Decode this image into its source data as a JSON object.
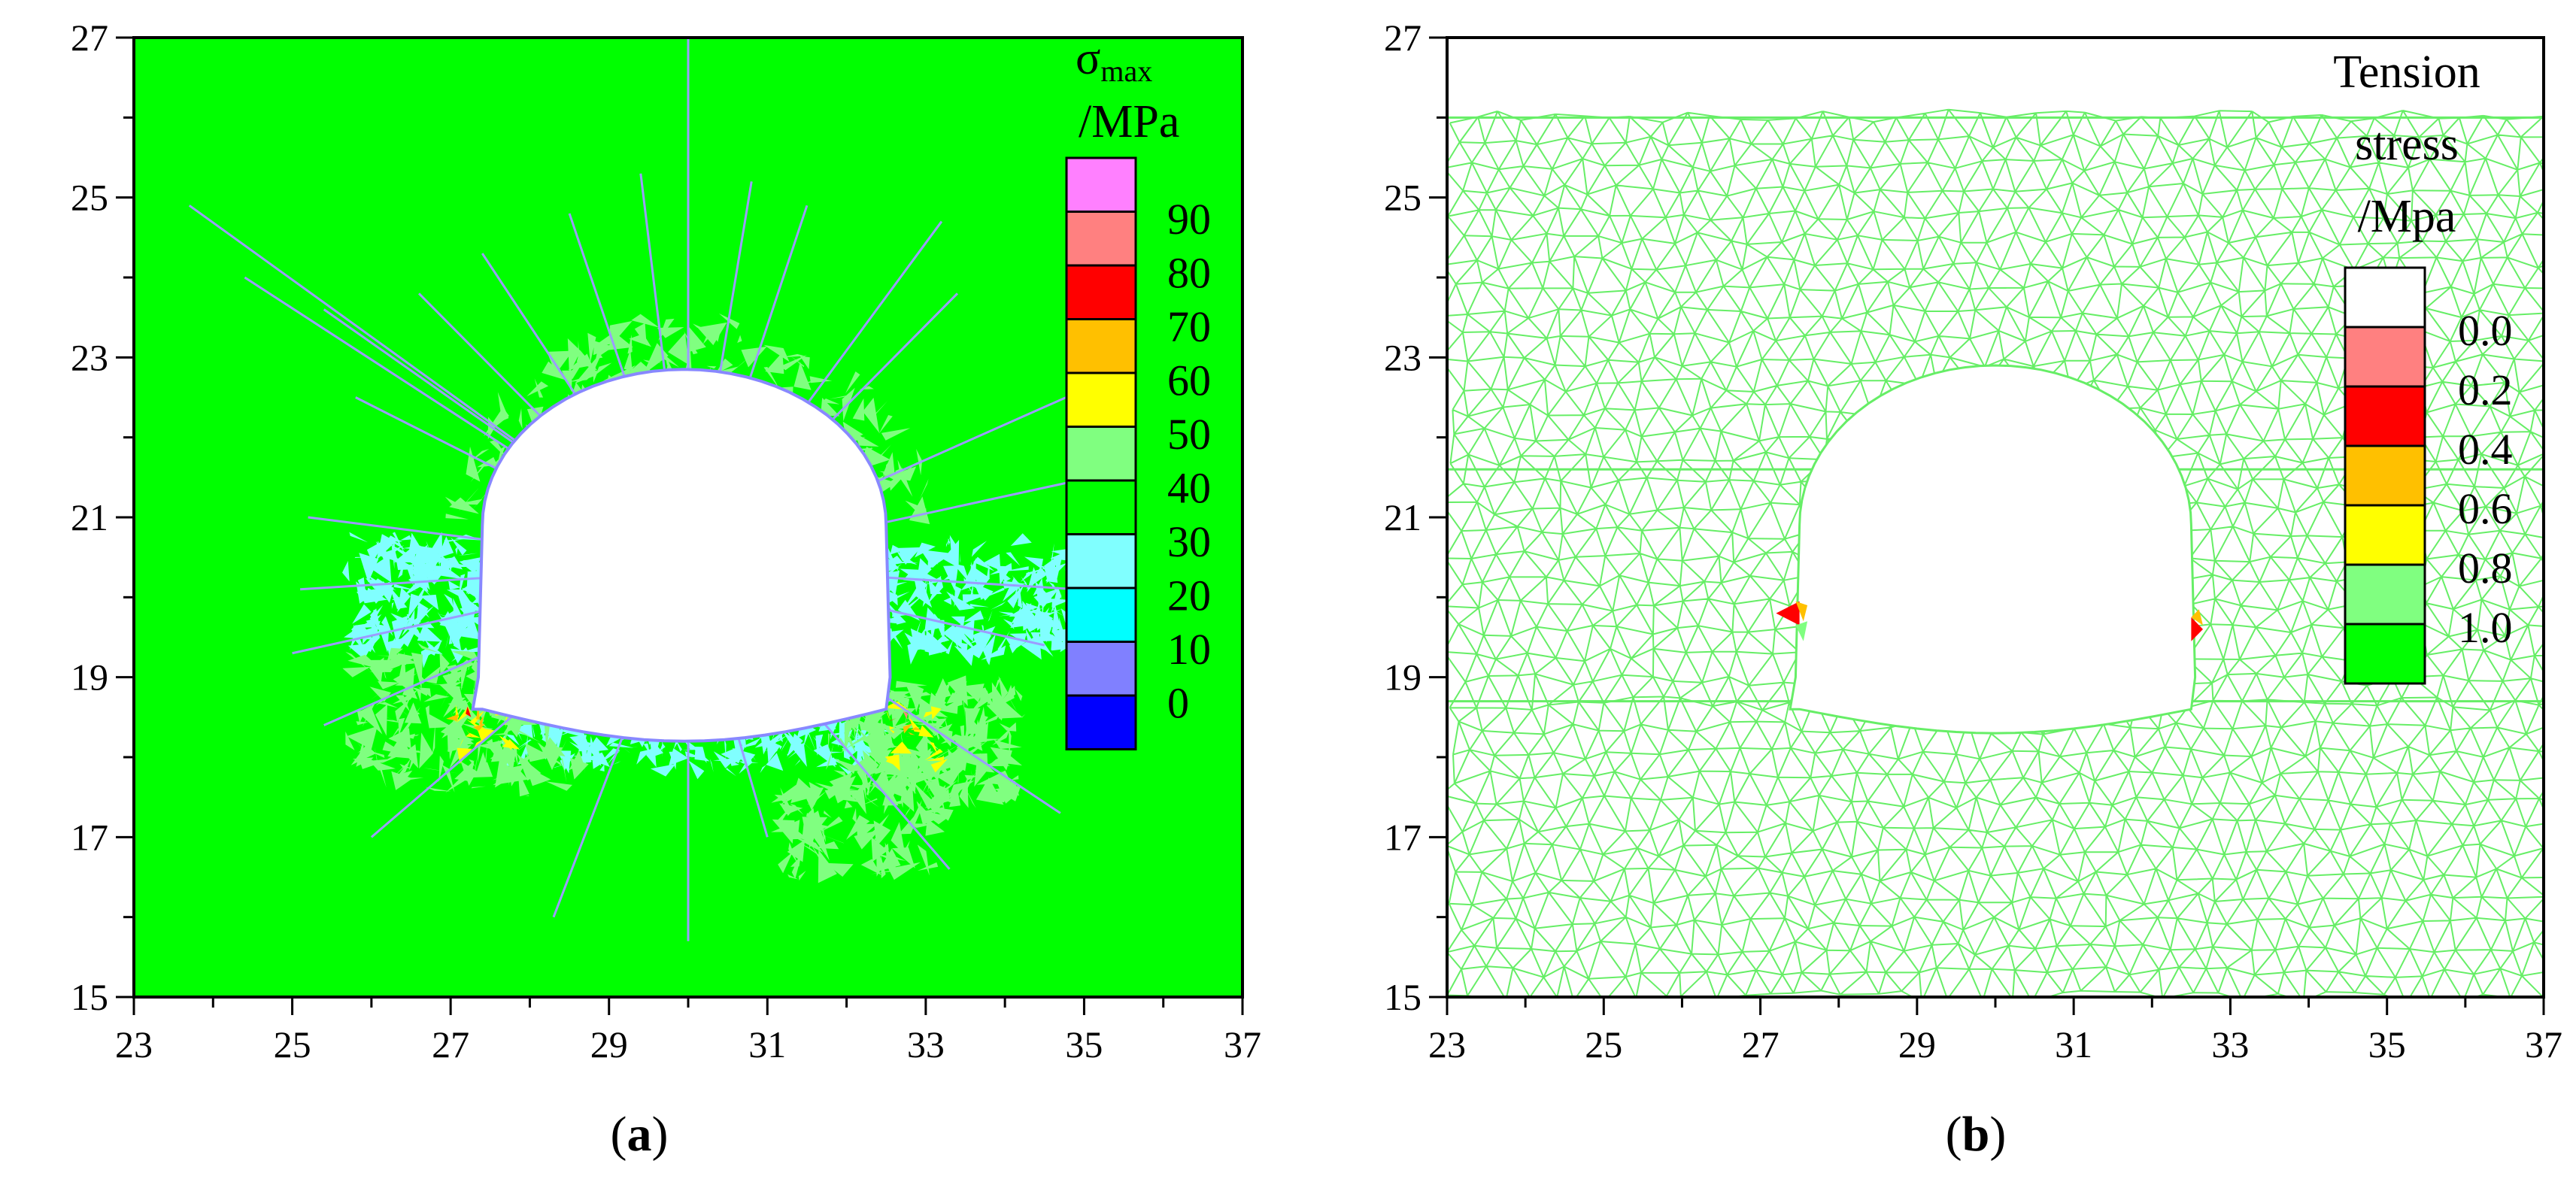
{
  "chart_data": [
    {
      "type": "heatmap",
      "panel_label": "a",
      "xlim": [
        23,
        37
      ],
      "ylim": [
        15,
        27
      ],
      "x_ticks": [
        "23",
        "25",
        "27",
        "29",
        "31",
        "33",
        "35",
        "37"
      ],
      "y_ticks": [
        "15",
        "17",
        "19",
        "21",
        "23",
        "25",
        "27"
      ],
      "legend": {
        "title_symbol": "σ",
        "title_subscript": "max",
        "title_unit": "/MPa",
        "placement": "top-right",
        "levels": [
          {
            "label": "90",
            "color": "#ff80ff"
          },
          {
            "label": "80",
            "color": "#ff8080"
          },
          {
            "label": "70",
            "color": "#ff0000"
          },
          {
            "label": "60",
            "color": "#ffc000"
          },
          {
            "label": "50",
            "color": "#ffff00"
          },
          {
            "label": "40",
            "color": "#80ff80"
          },
          {
            "label": "30",
            "color": "#00ff00"
          },
          {
            "label": "20",
            "color": "#80ffff"
          },
          {
            "label": "10",
            "color": "#00ffff"
          },
          {
            "label": "0",
            "color": "#8080ff"
          },
          {
            "label": "",
            "color": "#0000ff"
          }
        ]
      },
      "background_color": "#00ff00",
      "tunnel": {
        "x_left": 27.4,
        "x_right": 32.5,
        "y_floor_center": 18.2,
        "y_floor_edge": 18.6,
        "y_springline": 20.9,
        "y_crown": 22.85
      }
    },
    {
      "type": "heatmap",
      "panel_label": "b",
      "xlim": [
        23,
        37
      ],
      "ylim": [
        15,
        27
      ],
      "x_ticks": [
        "23",
        "25",
        "27",
        "29",
        "31",
        "33",
        "35",
        "37"
      ],
      "y_ticks": [
        "15",
        "17",
        "19",
        "21",
        "23",
        "25",
        "27"
      ],
      "legend": {
        "title_lines": [
          "Tension",
          "stress",
          "/Mpa"
        ],
        "placement": "top-right",
        "levels": [
          {
            "label": "0.0",
            "color": "#ffffff"
          },
          {
            "label": "0.2",
            "color": "#ff8080"
          },
          {
            "label": "0.4",
            "color": "#ff0000"
          },
          {
            "label": "0.6",
            "color": "#ffc000"
          },
          {
            "label": "0.8",
            "color": "#ffff00"
          },
          {
            "label": "1.0",
            "color": "#80ff80"
          },
          {
            "label": "",
            "color": "#00ff00"
          }
        ]
      },
      "mesh_color": "#66ee66",
      "tunnel": {
        "x_left": 27.5,
        "x_right": 32.5,
        "y_floor_center": 18.3,
        "y_floor_edge": 18.6,
        "y_springline": 20.9,
        "y_crown": 22.9
      }
    }
  ]
}
